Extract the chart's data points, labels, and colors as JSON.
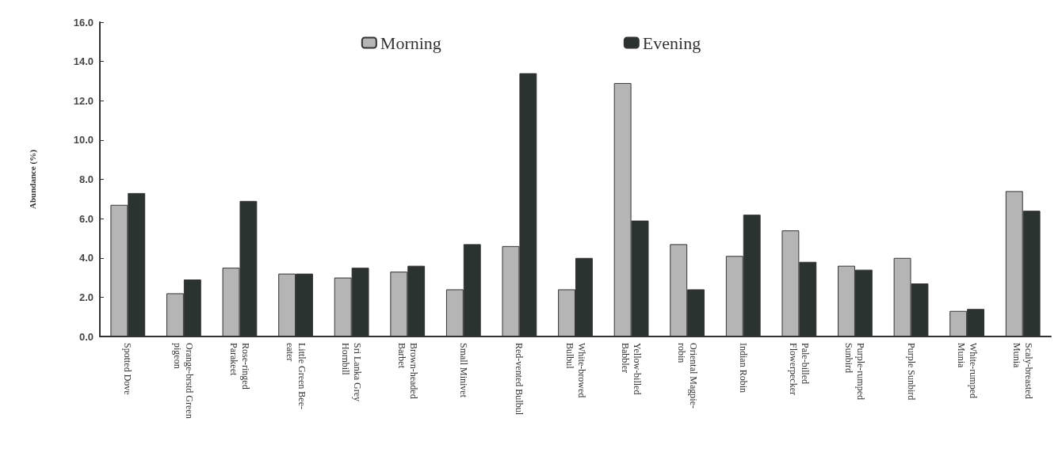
{
  "chart_data": {
    "type": "bar",
    "ylabel": "Abundance (%)",
    "categories": [
      "Spotted Dove",
      "Orange-brstd Green\npigeon",
      "Rose-ringed\nParakeet",
      "Little Green Bee-\neater",
      "Sri Lanka Grey\nHornbill",
      "Brown-headed\nBarbet",
      "Small Minivet",
      "Red-vented Bulbul",
      "White-browed\nBulbul",
      "Yellow-billed\nBabbler",
      "Oriental Magpie-\nrobin",
      "Indian Robin",
      "Pale-billed\nFlowerpecker",
      "Purple-rumped\nSunbird",
      "Purple Sunbird",
      "White-rumped\nMunia",
      "Scaly-breasted\nMunia"
    ],
    "series": [
      {
        "name": "Morning",
        "color": "#b5b5b5",
        "values": [
          6.7,
          2.2,
          3.5,
          3.2,
          3.0,
          3.3,
          2.4,
          4.6,
          2.4,
          12.9,
          4.7,
          4.1,
          5.4,
          3.6,
          4.0,
          1.3,
          7.4
        ]
      },
      {
        "name": "Evening",
        "color": "#2b3330",
        "values": [
          7.3,
          2.9,
          6.9,
          3.2,
          3.5,
          3.6,
          4.7,
          13.4,
          4.0,
          5.9,
          2.4,
          6.2,
          3.8,
          3.4,
          2.7,
          1.4,
          6.4
        ]
      }
    ],
    "ylim": [
      0,
      16
    ],
    "yticks": [
      {
        "value": 0,
        "label": "0.0"
      },
      {
        "value": 2,
        "label": "2.0"
      },
      {
        "value": 4,
        "label": "4.0"
      },
      {
        "value": 6,
        "label": "6.0"
      },
      {
        "value": 8,
        "label": "8.0"
      },
      {
        "value": 10,
        "label": "10.0"
      },
      {
        "value": 12,
        "label": "12.0"
      },
      {
        "value": 14,
        "label": "14.0"
      },
      {
        "value": 16,
        "label": "16.0"
      }
    ],
    "grid": false,
    "legend": "top"
  }
}
